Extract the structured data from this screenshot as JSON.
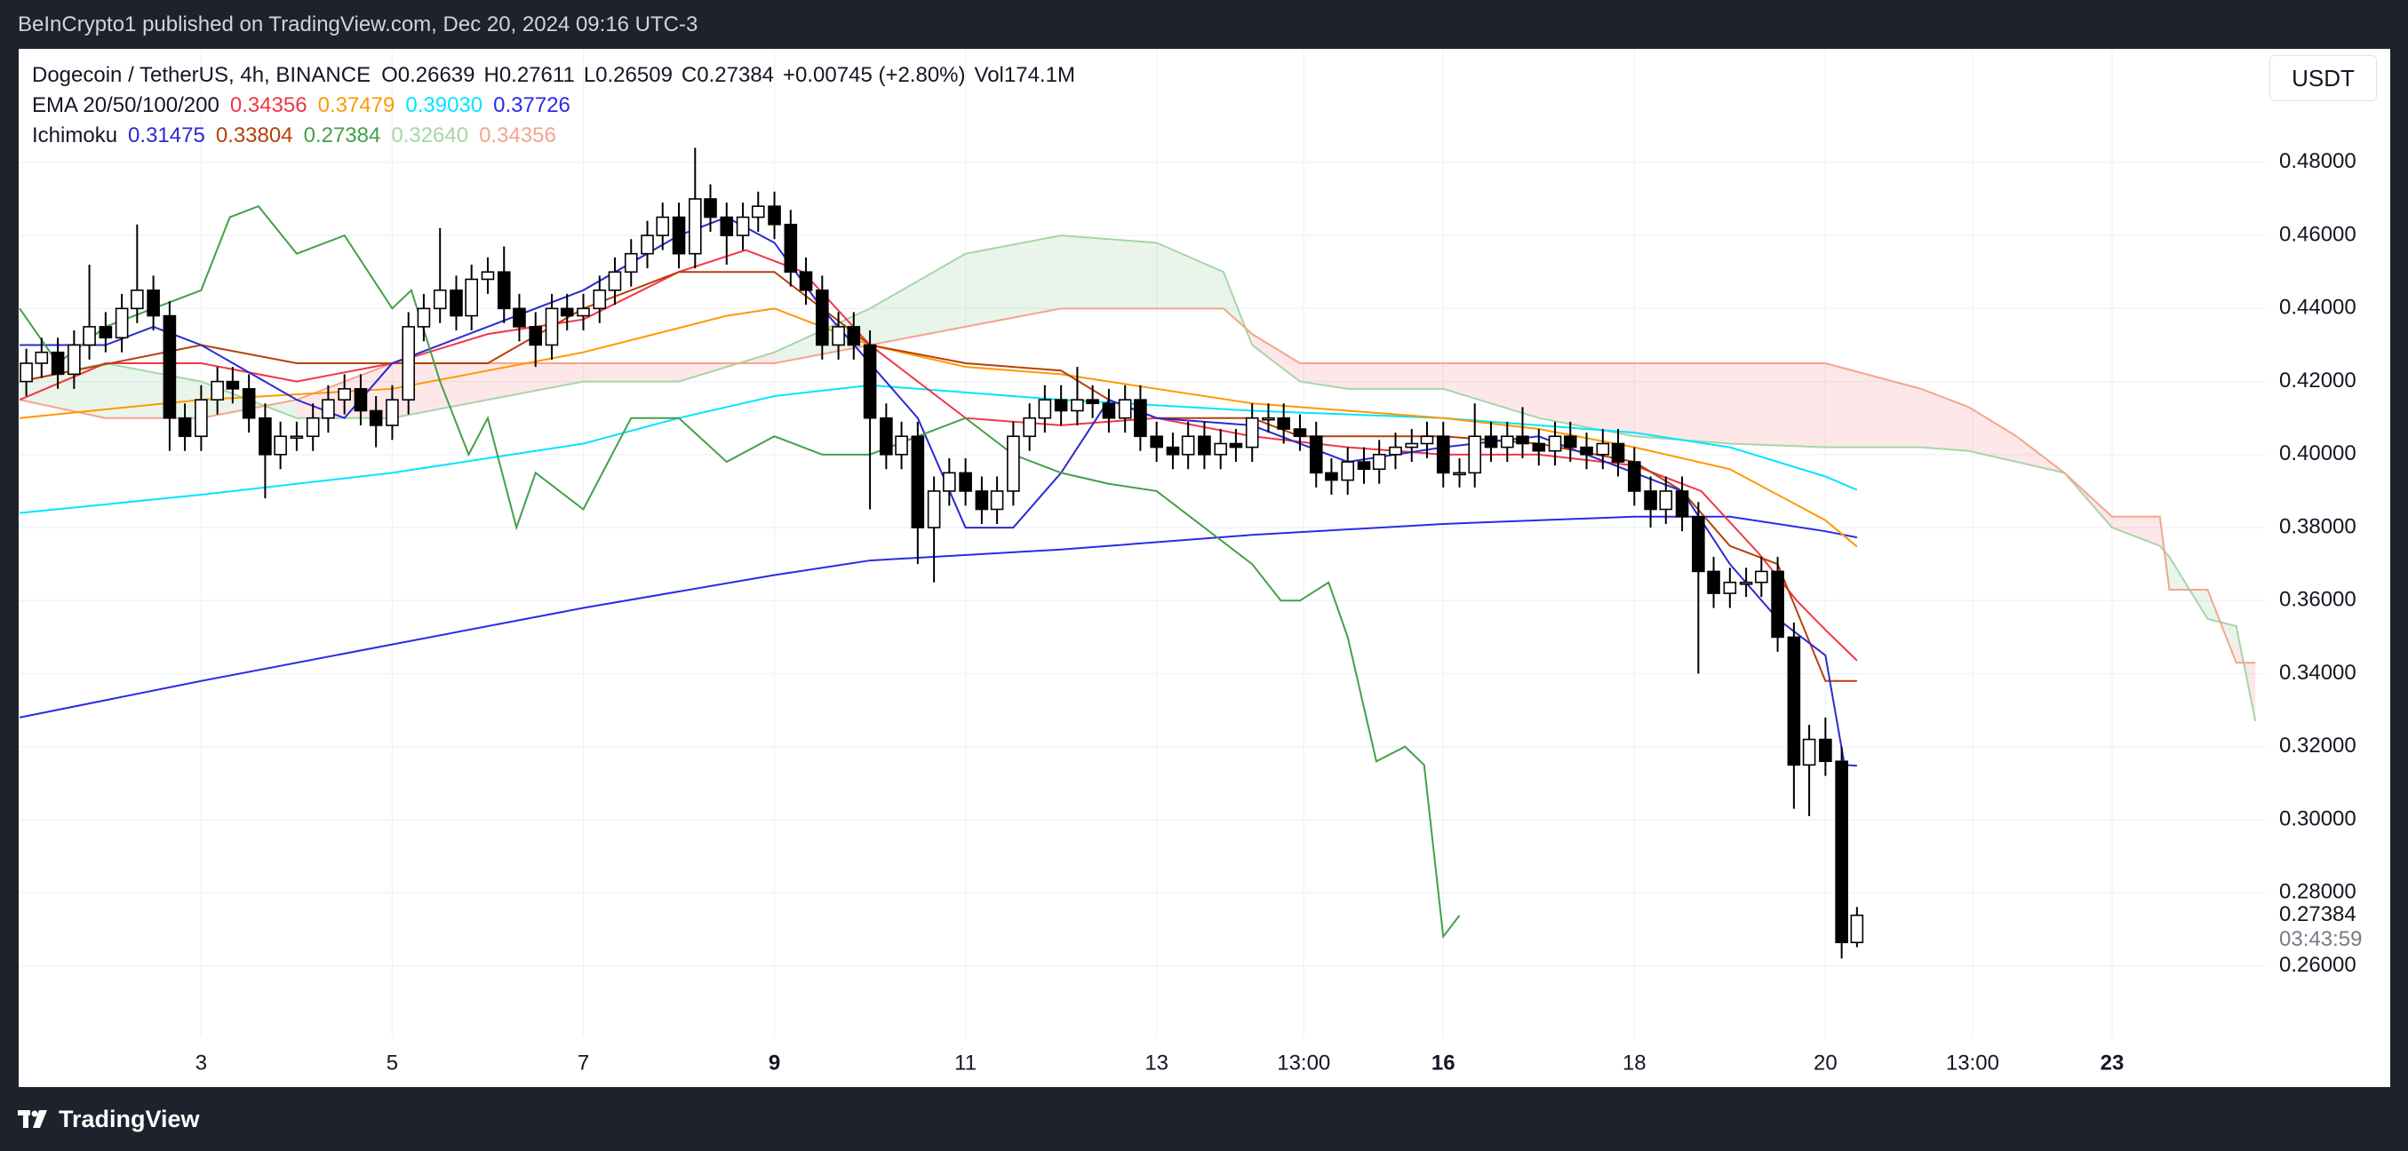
{
  "header": {
    "published": "BeInCrypto1 published on TradingView.com, Dec 20, 2024 09:16 UTC-3"
  },
  "footer": {
    "logo": "TradingView"
  },
  "currency_button": "USDT",
  "chart_data": {
    "type": "candlestick",
    "title": "Dogecoin / TetherUS, 4h, BINANCE",
    "ohlc_legend": [
      "O0.26639",
      "H0.27611",
      "L0.26509",
      "C0.27384",
      "+0.00745 (+2.80%)",
      "Vol174.1M"
    ],
    "indicators": [
      {
        "label": "EMA 20/50/100/200",
        "values": [
          {
            "text": "0.34356",
            "color": "#f23645"
          },
          {
            "text": "0.37479",
            "color": "#ff9800"
          },
          {
            "text": "0.39030",
            "color": "#00e5ff"
          },
          {
            "text": "0.37726",
            "color": "#2a2ae8"
          }
        ]
      },
      {
        "label": "Ichimoku",
        "values": [
          {
            "text": "0.31475",
            "color": "#2a2ad0"
          },
          {
            "text": "0.33804",
            "color": "#b5400b"
          },
          {
            "text": "0.27384",
            "color": "#43a047"
          },
          {
            "text": "0.32640",
            "color": "#a5d6a7"
          },
          {
            "text": "0.34356",
            "color": "#f4a58c"
          }
        ]
      }
    ],
    "x": [
      1.17,
      1.33,
      1.5,
      1.67,
      1.83,
      2,
      2.17,
      2.33,
      2.5,
      2.67,
      2.83,
      3,
      3.17,
      3.33,
      3.5,
      3.67,
      3.83,
      4,
      4.17,
      4.33,
      4.5,
      4.67,
      4.83,
      5,
      5.17,
      5.33,
      5.5,
      5.67,
      5.83,
      6,
      6.17,
      6.33,
      6.5,
      6.67,
      6.83,
      7,
      7.17,
      7.33,
      7.5,
      7.67,
      7.83,
      8,
      8.17,
      8.33,
      8.5,
      8.67,
      8.83,
      9,
      9.17,
      9.33,
      9.5,
      9.67,
      9.83,
      10,
      10.17,
      10.33,
      10.5,
      10.67,
      10.83,
      11,
      11.17,
      11.33,
      11.5,
      11.67,
      11.83,
      12,
      12.17,
      12.33,
      12.5,
      12.67,
      12.83,
      13,
      13.17,
      13.33,
      13.5,
      13.67,
      13.83,
      14,
      14.17,
      14.33,
      14.5,
      14.67,
      14.83,
      15,
      15.17,
      15.33,
      15.5,
      15.67,
      15.83,
      16,
      16.17,
      16.33,
      16.5,
      16.67,
      16.83,
      17,
      17.17,
      17.33,
      17.5,
      17.67,
      17.83,
      18,
      18.17,
      18.33,
      18.5,
      18.67,
      18.83,
      19,
      19.17,
      19.33,
      19.5,
      19.67,
      19.83,
      20,
      20.17,
      20.33
    ],
    "open": [
      0.42,
      0.425,
      0.428,
      0.422,
      0.43,
      0.435,
      0.432,
      0.44,
      0.445,
      0.438,
      0.41,
      0.405,
      0.415,
      0.42,
      0.418,
      0.41,
      0.4,
      0.405,
      0.405,
      0.41,
      0.415,
      0.418,
      0.412,
      0.408,
      0.415,
      0.435,
      0.44,
      0.445,
      0.438,
      0.448,
      0.45,
      0.44,
      0.435,
      0.43,
      0.44,
      0.438,
      0.44,
      0.445,
      0.45,
      0.455,
      0.46,
      0.465,
      0.455,
      0.47,
      0.465,
      0.46,
      0.465,
      0.468,
      0.463,
      0.45,
      0.445,
      0.43,
      0.435,
      0.43,
      0.41,
      0.4,
      0.405,
      0.38,
      0.39,
      0.395,
      0.39,
      0.385,
      0.39,
      0.405,
      0.41,
      0.415,
      0.412,
      0.415,
      0.414,
      0.41,
      0.415,
      0.405,
      0.402,
      0.4,
      0.405,
      0.4,
      0.403,
      0.402,
      0.41,
      0.41,
      0.407,
      0.405,
      0.395,
      0.393,
      0.398,
      0.396,
      0.4,
      0.402,
      0.403,
      0.405,
      0.395,
      0.395,
      0.405,
      0.402,
      0.405,
      0.403,
      0.401,
      0.405,
      0.402,
      0.4,
      0.403,
      0.398,
      0.39,
      0.385,
      0.39,
      0.383,
      0.368,
      0.362,
      0.365,
      0.365,
      0.368,
      0.35,
      0.315,
      0.322,
      0.316,
      0.26639
    ],
    "high": [
      0.429,
      0.432,
      0.432,
      0.434,
      0.452,
      0.439,
      0.444,
      0.463,
      0.449,
      0.442,
      0.414,
      0.419,
      0.424,
      0.424,
      0.422,
      0.414,
      0.409,
      0.409,
      0.414,
      0.419,
      0.422,
      0.422,
      0.416,
      0.419,
      0.439,
      0.444,
      0.462,
      0.449,
      0.452,
      0.454,
      0.457,
      0.444,
      0.439,
      0.444,
      0.444,
      0.444,
      0.449,
      0.454,
      0.459,
      0.464,
      0.469,
      0.469,
      0.484,
      0.474,
      0.469,
      0.469,
      0.472,
      0.472,
      0.467,
      0.454,
      0.449,
      0.439,
      0.439,
      0.434,
      0.414,
      0.409,
      0.409,
      0.394,
      0.399,
      0.399,
      0.394,
      0.394,
      0.409,
      0.414,
      0.419,
      0.419,
      0.424,
      0.419,
      0.418,
      0.419,
      0.419,
      0.409,
      0.406,
      0.409,
      0.409,
      0.407,
      0.407,
      0.414,
      0.414,
      0.414,
      0.411,
      0.409,
      0.399,
      0.402,
      0.402,
      0.404,
      0.406,
      0.407,
      0.409,
      0.409,
      0.399,
      0.414,
      0.409,
      0.409,
      0.413,
      0.407,
      0.409,
      0.409,
      0.406,
      0.407,
      0.407,
      0.402,
      0.394,
      0.394,
      0.394,
      0.387,
      0.372,
      0.369,
      0.369,
      0.372,
      0.372,
      0.354,
      0.326,
      0.328,
      0.32,
      0.27611
    ],
    "low": [
      0.416,
      0.421,
      0.418,
      0.418,
      0.426,
      0.428,
      0.428,
      0.436,
      0.434,
      0.401,
      0.401,
      0.401,
      0.411,
      0.414,
      0.406,
      0.388,
      0.396,
      0.401,
      0.401,
      0.406,
      0.411,
      0.408,
      0.402,
      0.404,
      0.411,
      0.431,
      0.436,
      0.434,
      0.434,
      0.444,
      0.436,
      0.431,
      0.424,
      0.426,
      0.434,
      0.434,
      0.436,
      0.441,
      0.446,
      0.451,
      0.456,
      0.451,
      0.451,
      0.461,
      0.452,
      0.456,
      0.461,
      0.459,
      0.446,
      0.441,
      0.426,
      0.426,
      0.426,
      0.385,
      0.396,
      0.396,
      0.37,
      0.365,
      0.386,
      0.386,
      0.381,
      0.381,
      0.386,
      0.401,
      0.406,
      0.408,
      0.408,
      0.41,
      0.406,
      0.406,
      0.401,
      0.398,
      0.396,
      0.396,
      0.396,
      0.396,
      0.398,
      0.398,
      0.406,
      0.403,
      0.401,
      0.391,
      0.389,
      0.389,
      0.392,
      0.392,
      0.396,
      0.398,
      0.399,
      0.391,
      0.391,
      0.391,
      0.398,
      0.398,
      0.399,
      0.397,
      0.397,
      0.398,
      0.396,
      0.396,
      0.394,
      0.386,
      0.38,
      0.381,
      0.379,
      0.34,
      0.358,
      0.358,
      0.361,
      0.361,
      0.346,
      0.303,
      0.301,
      0.312,
      0.262,
      0.26509
    ],
    "close": [
      0.425,
      0.428,
      0.422,
      0.43,
      0.435,
      0.432,
      0.44,
      0.445,
      0.438,
      0.41,
      0.405,
      0.415,
      0.42,
      0.418,
      0.41,
      0.4,
      0.405,
      0.405,
      0.41,
      0.415,
      0.418,
      0.412,
      0.408,
      0.415,
      0.435,
      0.44,
      0.445,
      0.438,
      0.448,
      0.45,
      0.44,
      0.435,
      0.43,
      0.44,
      0.438,
      0.44,
      0.445,
      0.45,
      0.455,
      0.46,
      0.465,
      0.455,
      0.47,
      0.465,
      0.46,
      0.465,
      0.468,
      0.463,
      0.45,
      0.445,
      0.43,
      0.435,
      0.43,
      0.41,
      0.4,
      0.405,
      0.38,
      0.39,
      0.395,
      0.39,
      0.385,
      0.39,
      0.405,
      0.41,
      0.415,
      0.412,
      0.415,
      0.414,
      0.41,
      0.415,
      0.405,
      0.402,
      0.4,
      0.405,
      0.4,
      0.403,
      0.402,
      0.41,
      0.41,
      0.407,
      0.405,
      0.395,
      0.393,
      0.398,
      0.396,
      0.4,
      0.402,
      0.403,
      0.405,
      0.395,
      0.395,
      0.405,
      0.402,
      0.405,
      0.403,
      0.401,
      0.405,
      0.402,
      0.4,
      0.403,
      0.398,
      0.39,
      0.385,
      0.39,
      0.383,
      0.368,
      0.362,
      0.365,
      0.365,
      0.368,
      0.35,
      0.315,
      0.322,
      0.316,
      0.26639,
      0.27384
    ],
    "up_color": "#ffffff",
    "down_color": "#000000",
    "cloud": {
      "x": [
        1.1,
        2,
        3,
        4,
        5,
        6,
        7,
        8,
        9,
        10,
        11,
        12,
        13,
        13.7,
        14,
        14.5,
        15,
        16,
        17,
        18,
        19,
        20,
        21,
        21.5,
        22,
        22.5,
        23,
        23.5,
        23.6,
        24,
        24.3,
        24.5
      ],
      "span_a": [
        0.42,
        0.425,
        0.42,
        0.41,
        0.41,
        0.415,
        0.42,
        0.42,
        0.428,
        0.44,
        0.455,
        0.46,
        0.458,
        0.45,
        0.43,
        0.42,
        0.418,
        0.418,
        0.41,
        0.405,
        0.403,
        0.402,
        0.402,
        0.401,
        0.398,
        0.395,
        0.38,
        0.375,
        0.372,
        0.355,
        0.353,
        0.327
      ],
      "span_b": [
        0.415,
        0.41,
        0.41,
        0.415,
        0.425,
        0.425,
        0.425,
        0.425,
        0.425,
        0.43,
        0.435,
        0.44,
        0.44,
        0.44,
        0.433,
        0.425,
        0.425,
        0.425,
        0.425,
        0.425,
        0.425,
        0.425,
        0.418,
        0.413,
        0.405,
        0.395,
        0.383,
        0.383,
        0.363,
        0.363,
        0.343,
        0.343
      ],
      "span_a_color": "#a5d6a7",
      "span_b_color": "#f4a58c",
      "up_fill": "rgba(76,175,80,0.12)",
      "down_fill": "rgba(242,54,69,0.12)"
    },
    "lines": [
      {
        "color": "#2a2ae8",
        "x": [
          1.1,
          3,
          5,
          7,
          9,
          10,
          12,
          14,
          16,
          18,
          19,
          20,
          20.33
        ],
        "values": [
          0.328,
          0.338,
          0.348,
          0.358,
          0.367,
          0.371,
          0.374,
          0.378,
          0.381,
          0.383,
          0.383,
          0.379,
          0.3773
        ]
      },
      {
        "color": "#00e5ff",
        "x": [
          1.1,
          3,
          5,
          7,
          8,
          9,
          10,
          11,
          12,
          14,
          16,
          18,
          19,
          20,
          20.33
        ],
        "values": [
          0.384,
          0.389,
          0.395,
          0.403,
          0.41,
          0.416,
          0.419,
          0.417,
          0.415,
          0.412,
          0.41,
          0.406,
          0.402,
          0.394,
          0.3903
        ]
      },
      {
        "color": "#ff9800",
        "x": [
          1.1,
          3,
          5,
          7,
          8.5,
          9,
          10,
          11,
          12,
          13,
          14,
          16,
          17,
          18,
          19,
          20,
          20.33
        ],
        "values": [
          0.41,
          0.415,
          0.418,
          0.428,
          0.438,
          0.44,
          0.43,
          0.424,
          0.422,
          0.418,
          0.414,
          0.41,
          0.407,
          0.402,
          0.396,
          0.382,
          0.3748
        ]
      },
      {
        "color": "#f23645",
        "x": [
          1.1,
          2,
          3,
          4,
          5,
          6,
          7,
          8,
          8.7,
          9.3,
          10,
          11,
          12,
          13,
          14,
          15,
          16,
          17,
          18,
          18.7,
          19.3,
          19.7,
          20,
          20.33
        ],
        "values": [
          0.415,
          0.425,
          0.425,
          0.42,
          0.425,
          0.433,
          0.437,
          0.45,
          0.456,
          0.45,
          0.43,
          0.41,
          0.408,
          0.41,
          0.405,
          0.402,
          0.4,
          0.4,
          0.397,
          0.39,
          0.373,
          0.36,
          0.352,
          0.3436
        ]
      },
      {
        "color": "#b5400b",
        "x": [
          1.1,
          3,
          4,
          5,
          6,
          7,
          7.5,
          8,
          9,
          10,
          11,
          12,
          12.5,
          13,
          14,
          14.5,
          16,
          17,
          18,
          18.5,
          19,
          19.5,
          20,
          20.33
        ],
        "values": [
          0.42,
          0.43,
          0.425,
          0.425,
          0.425,
          0.44,
          0.445,
          0.45,
          0.45,
          0.43,
          0.425,
          0.423,
          0.415,
          0.41,
          0.41,
          0.405,
          0.405,
          0.403,
          0.398,
          0.39,
          0.375,
          0.37,
          0.338,
          0.338
        ]
      },
      {
        "color": "#2a2ad0",
        "x": [
          1.1,
          2,
          2.5,
          3,
          4,
          4.5,
          5,
          6,
          7,
          8,
          8.5,
          9,
          9.5,
          10,
          10.5,
          11,
          11.5,
          12,
          12.5,
          13,
          14,
          15,
          16,
          17,
          18,
          18.5,
          19,
          19.5,
          20,
          20.2,
          20.33
        ],
        "values": [
          0.43,
          0.43,
          0.435,
          0.43,
          0.415,
          0.41,
          0.425,
          0.435,
          0.445,
          0.46,
          0.465,
          0.458,
          0.44,
          0.425,
          0.41,
          0.38,
          0.38,
          0.395,
          0.415,
          0.41,
          0.408,
          0.398,
          0.402,
          0.405,
          0.395,
          0.39,
          0.37,
          0.355,
          0.345,
          0.315,
          0.3148
        ]
      },
      {
        "color": "#43a047",
        "x": [
          1.1,
          1.5,
          2,
          2.5,
          3,
          3.3,
          3.6,
          4,
          4.5,
          5,
          5.2,
          5.5,
          5.8,
          6,
          6.3,
          6.5,
          7,
          7.5,
          8,
          8.5,
          9,
          9.5,
          10,
          10.5,
          11,
          11.5,
          12,
          12.5,
          13,
          13.5,
          14,
          14.3,
          14.5,
          14.8,
          15,
          15.3,
          15.6,
          15.8,
          16,
          16.17
        ],
        "values": [
          0.44,
          0.425,
          0.435,
          0.44,
          0.445,
          0.465,
          0.468,
          0.455,
          0.46,
          0.44,
          0.445,
          0.42,
          0.4,
          0.41,
          0.38,
          0.395,
          0.385,
          0.41,
          0.41,
          0.398,
          0.405,
          0.4,
          0.4,
          0.405,
          0.41,
          0.4,
          0.395,
          0.392,
          0.39,
          0.38,
          0.37,
          0.36,
          0.36,
          0.365,
          0.35,
          0.316,
          0.32,
          0.315,
          0.268,
          0.2738
        ]
      }
    ],
    "xlim": [
      1.09,
      24.6
    ],
    "ylim": [
      0.2268,
      0.5111
    ],
    "xticks": [
      3,
      5,
      7,
      {
        "value": 9,
        "label": "9",
        "bold": true
      },
      11,
      13,
      {
        "value": 14.54,
        "label": "13:00"
      },
      {
        "value": 16,
        "label": "16",
        "bold": true
      },
      18,
      20,
      {
        "value": 21.54,
        "label": "13:00"
      },
      {
        "value": 23,
        "label": "23",
        "bold": true
      }
    ],
    "yticks": [
      {
        "value": 0.26,
        "label": "0.26000"
      },
      {
        "value": 0.28,
        "label": "0.28000"
      },
      {
        "value": 0.3,
        "label": "0.30000"
      },
      {
        "value": 0.32,
        "label": "0.32000"
      },
      {
        "value": 0.34,
        "label": "0.34000"
      },
      {
        "value": 0.36,
        "label": "0.36000"
      },
      {
        "value": 0.38,
        "label": "0.38000"
      },
      {
        "value": 0.4,
        "label": "0.40000"
      },
      {
        "value": 0.42,
        "label": "0.42000"
      },
      {
        "value": 0.44,
        "label": "0.44000"
      },
      {
        "value": 0.46,
        "label": "0.46000"
      },
      {
        "value": 0.48,
        "label": "0.48000"
      }
    ],
    "last_price": 0.27384,
    "countdown": "03:43:59",
    "grid": true
  }
}
